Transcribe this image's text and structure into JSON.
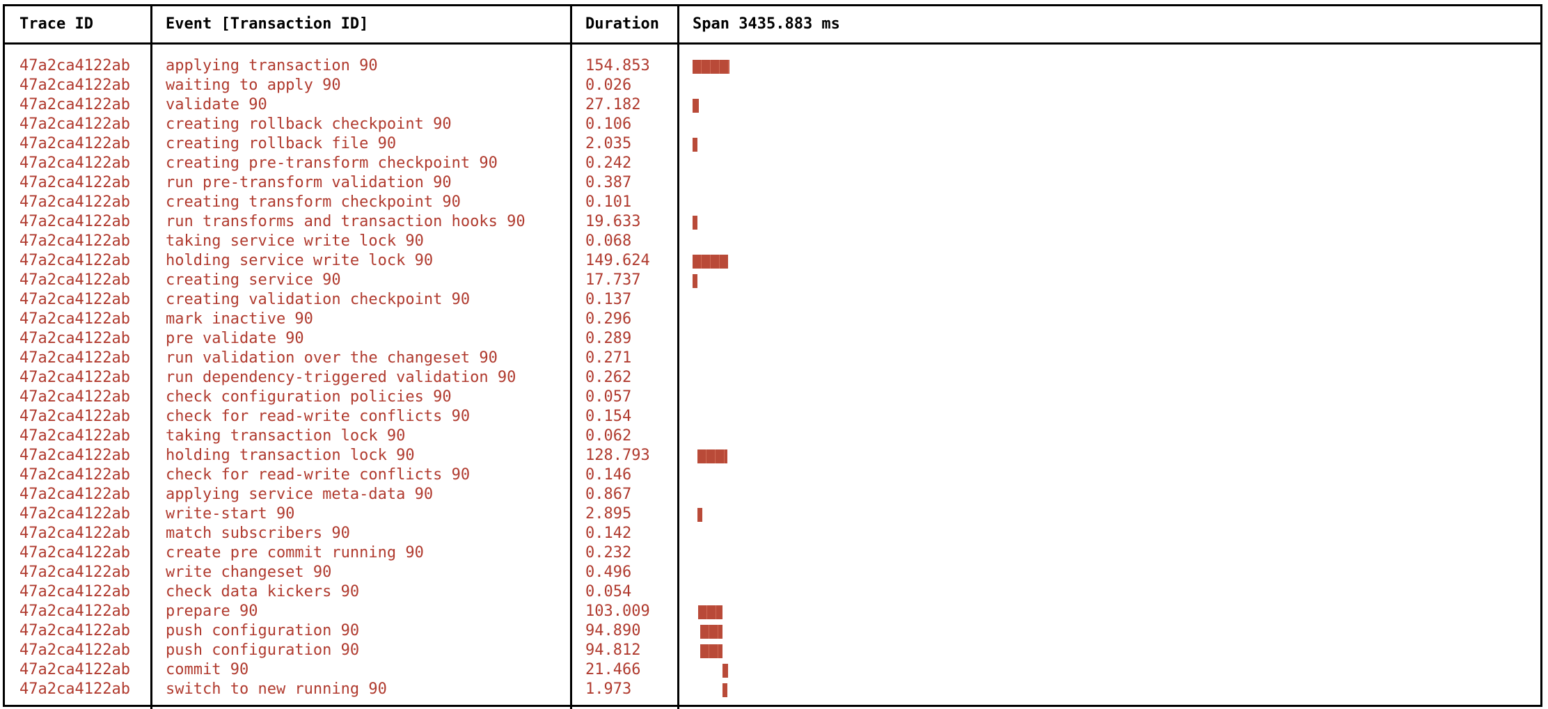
{
  "header": {
    "trace_id": "Trace ID",
    "event": "Event [Transaction ID]",
    "duration": "Duration",
    "span": "Span 3435.883 ms"
  },
  "rows": [
    {
      "trace": "47a2ca4122ab",
      "event": "applying transaction 90",
      "duration": "154.853",
      "start_ms": 0.0,
      "dur_ms": 154.853
    },
    {
      "trace": "47a2ca4122ab",
      "event": "waiting to apply 90",
      "duration": "0.026",
      "start_ms": 0.0,
      "dur_ms": 0.026
    },
    {
      "trace": "47a2ca4122ab",
      "event": "validate 90",
      "duration": "27.182",
      "start_ms": 0.0,
      "dur_ms": 27.182
    },
    {
      "trace": "47a2ca4122ab",
      "event": "creating rollback checkpoint 90",
      "duration": "0.106",
      "start_ms": 0.0,
      "dur_ms": 0.106
    },
    {
      "trace": "47a2ca4122ab",
      "event": "creating rollback file 90",
      "duration": "2.035",
      "start_ms": 0.0,
      "dur_ms": 2.035
    },
    {
      "trace": "47a2ca4122ab",
      "event": "creating pre-transform checkpoint 90",
      "duration": "0.242",
      "start_ms": 0.0,
      "dur_ms": 0.242
    },
    {
      "trace": "47a2ca4122ab",
      "event": "run pre-transform validation 90",
      "duration": "0.387",
      "start_ms": 0.0,
      "dur_ms": 0.387
    },
    {
      "trace": "47a2ca4122ab",
      "event": "creating transform checkpoint 90",
      "duration": "0.101",
      "start_ms": 0.0,
      "dur_ms": 0.101
    },
    {
      "trace": "47a2ca4122ab",
      "event": "run transforms and transaction hooks 90",
      "duration": "19.633",
      "start_ms": 0.0,
      "dur_ms": 19.633
    },
    {
      "trace": "47a2ca4122ab",
      "event": "taking service write lock 90",
      "duration": "0.068",
      "start_ms": 0.0,
      "dur_ms": 0.068
    },
    {
      "trace": "47a2ca4122ab",
      "event": "holding service write lock 90",
      "duration": "149.624",
      "start_ms": 0.0,
      "dur_ms": 149.624
    },
    {
      "trace": "47a2ca4122ab",
      "event": "creating service 90",
      "duration": "17.737",
      "start_ms": 0.0,
      "dur_ms": 17.737
    },
    {
      "trace": "47a2ca4122ab",
      "event": "creating validation checkpoint 90",
      "duration": "0.137",
      "start_ms": 17.8,
      "dur_ms": 0.137
    },
    {
      "trace": "47a2ca4122ab",
      "event": "mark inactive 90",
      "duration": "0.296",
      "start_ms": 17.9,
      "dur_ms": 0.296
    },
    {
      "trace": "47a2ca4122ab",
      "event": "pre validate 90",
      "duration": "0.289",
      "start_ms": 18.2,
      "dur_ms": 0.289
    },
    {
      "trace": "47a2ca4122ab",
      "event": "run validation over the changeset 90",
      "duration": "0.271",
      "start_ms": 18.5,
      "dur_ms": 0.271
    },
    {
      "trace": "47a2ca4122ab",
      "event": "run dependency-triggered validation 90",
      "duration": "0.262",
      "start_ms": 18.8,
      "dur_ms": 0.262
    },
    {
      "trace": "47a2ca4122ab",
      "event": "check configuration policies 90",
      "duration": "0.057",
      "start_ms": 19.0,
      "dur_ms": 0.057
    },
    {
      "trace": "47a2ca4122ab",
      "event": "check for read-write conflicts 90",
      "duration": "0.154",
      "start_ms": 19.1,
      "dur_ms": 0.154
    },
    {
      "trace": "47a2ca4122ab",
      "event": "taking transaction lock 90",
      "duration": "0.062",
      "start_ms": 19.3,
      "dur_ms": 0.062
    },
    {
      "trace": "47a2ca4122ab",
      "event": "holding transaction lock 90",
      "duration": "128.793",
      "start_ms": 19.4,
      "dur_ms": 128.793
    },
    {
      "trace": "47a2ca4122ab",
      "event": "check for read-write conflicts 90",
      "duration": "0.146",
      "start_ms": 19.5,
      "dur_ms": 0.146
    },
    {
      "trace": "47a2ca4122ab",
      "event": "applying service meta-data 90",
      "duration": "0.867",
      "start_ms": 19.6,
      "dur_ms": 0.867
    },
    {
      "trace": "47a2ca4122ab",
      "event": "write-start 90",
      "duration": "2.895",
      "start_ms": 20.5,
      "dur_ms": 2.895
    },
    {
      "trace": "47a2ca4122ab",
      "event": "match subscribers 90",
      "duration": "0.142",
      "start_ms": 23.4,
      "dur_ms": 0.142
    },
    {
      "trace": "47a2ca4122ab",
      "event": "create pre commit running 90",
      "duration": "0.232",
      "start_ms": 23.5,
      "dur_ms": 0.232
    },
    {
      "trace": "47a2ca4122ab",
      "event": "write changeset 90",
      "duration": "0.496",
      "start_ms": 23.8,
      "dur_ms": 0.496
    },
    {
      "trace": "47a2ca4122ab",
      "event": "check data kickers 90",
      "duration": "0.054",
      "start_ms": 24.3,
      "dur_ms": 0.054
    },
    {
      "trace": "47a2ca4122ab",
      "event": "prepare 90",
      "duration": "103.009",
      "start_ms": 24.4,
      "dur_ms": 103.009
    },
    {
      "trace": "47a2ca4122ab",
      "event": "push configuration 90",
      "duration": "94.890",
      "start_ms": 32.5,
      "dur_ms": 94.89
    },
    {
      "trace": "47a2ca4122ab",
      "event": "push configuration 90",
      "duration": "94.812",
      "start_ms": 32.5,
      "dur_ms": 94.812
    },
    {
      "trace": "47a2ca4122ab",
      "event": "commit 90",
      "duration": "21.466",
      "start_ms": 127.5,
      "dur_ms": 21.466
    },
    {
      "trace": "47a2ca4122ab",
      "event": "switch to new running 90",
      "duration": "1.973",
      "start_ms": 127.5,
      "dur_ms": 1.973
    }
  ],
  "bar_color": "#b94a38",
  "text_color": "#b03a2e"
}
